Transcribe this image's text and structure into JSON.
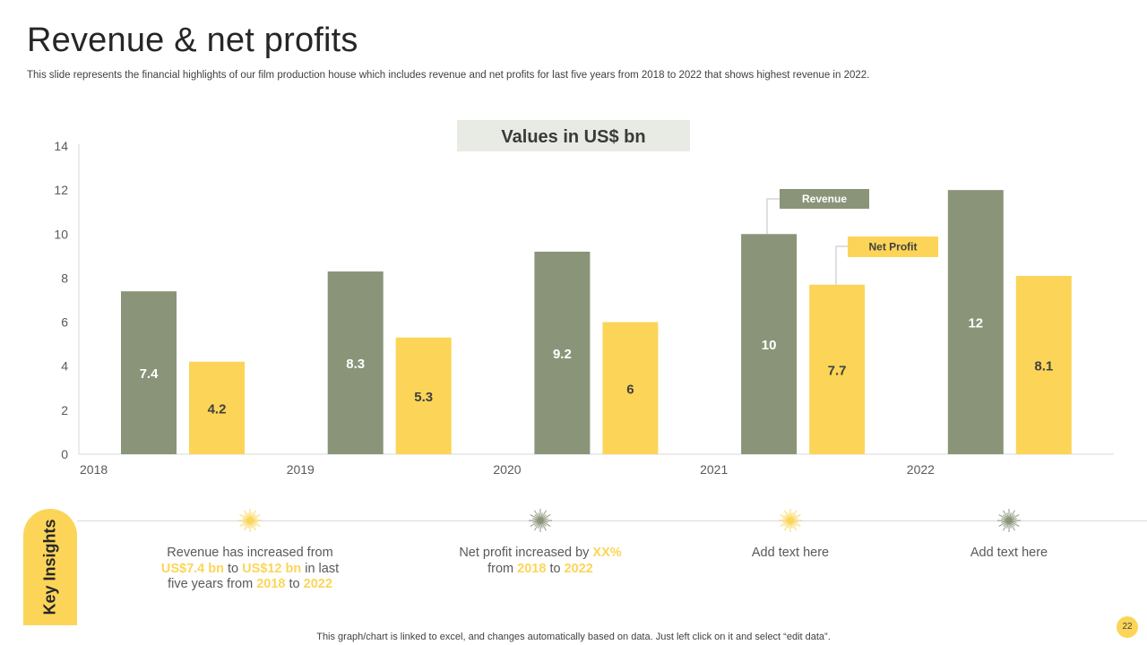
{
  "slide": {
    "title": "Revenue & net profits",
    "subtitle": "This slide represents the financial highlights of our film production house which includes revenue and net profits for last five years from 2018 to 2022 that shows highest revenue in 2022.",
    "footer": "This graph/chart is linked to excel, and changes automatically based on data. Just left click on it and select “edit data”.",
    "page_number": "22"
  },
  "colors": {
    "revenue": "#8a9479",
    "net_profit": "#fcd558",
    "values_box": "#e8ebe4"
  },
  "chart_data": {
    "type": "bar",
    "title": "Values in US$ bn",
    "categories": [
      "2018",
      "2019",
      "2020",
      "2021",
      "2022"
    ],
    "series": [
      {
        "name": "Revenue",
        "values": [
          7.4,
          8.3,
          9.2,
          10,
          12
        ]
      },
      {
        "name": "Net Profit",
        "values": [
          4.2,
          5.3,
          6,
          7.7,
          8.1
        ]
      }
    ],
    "ylim": [
      0,
      14
    ],
    "yticks": [
      0,
      2,
      4,
      6,
      8,
      10,
      12,
      14
    ],
    "xlabel": "",
    "ylabel": "",
    "callouts": [
      {
        "label": "Revenue",
        "series": "Revenue",
        "category": "2021"
      },
      {
        "label": "Net Profit",
        "series": "Net Profit",
        "category": "2021"
      }
    ]
  },
  "insights": {
    "label": "Key Insights",
    "items": [
      {
        "burst_color": "#fcd558",
        "line1": "Revenue has increased from",
        "l2a": "US$7.4 bn",
        "l2b": " to ",
        "l2c": "US$12 bn",
        "l2d": " in last",
        "l3a": "five years from ",
        "l3b": "2018",
        "l3c": " to ",
        "l3d": "2022"
      },
      {
        "burst_color": "#8a9479",
        "l1a": "Net profit increased by ",
        "l1b": "XX%",
        "l2a": "from ",
        "l2b": "2018",
        "l2c": " to ",
        "l2d": "2022"
      },
      {
        "burst_color": "#fcd558",
        "text": "Add text here"
      },
      {
        "burst_color": "#8a9479",
        "text": "Add text here"
      }
    ]
  }
}
